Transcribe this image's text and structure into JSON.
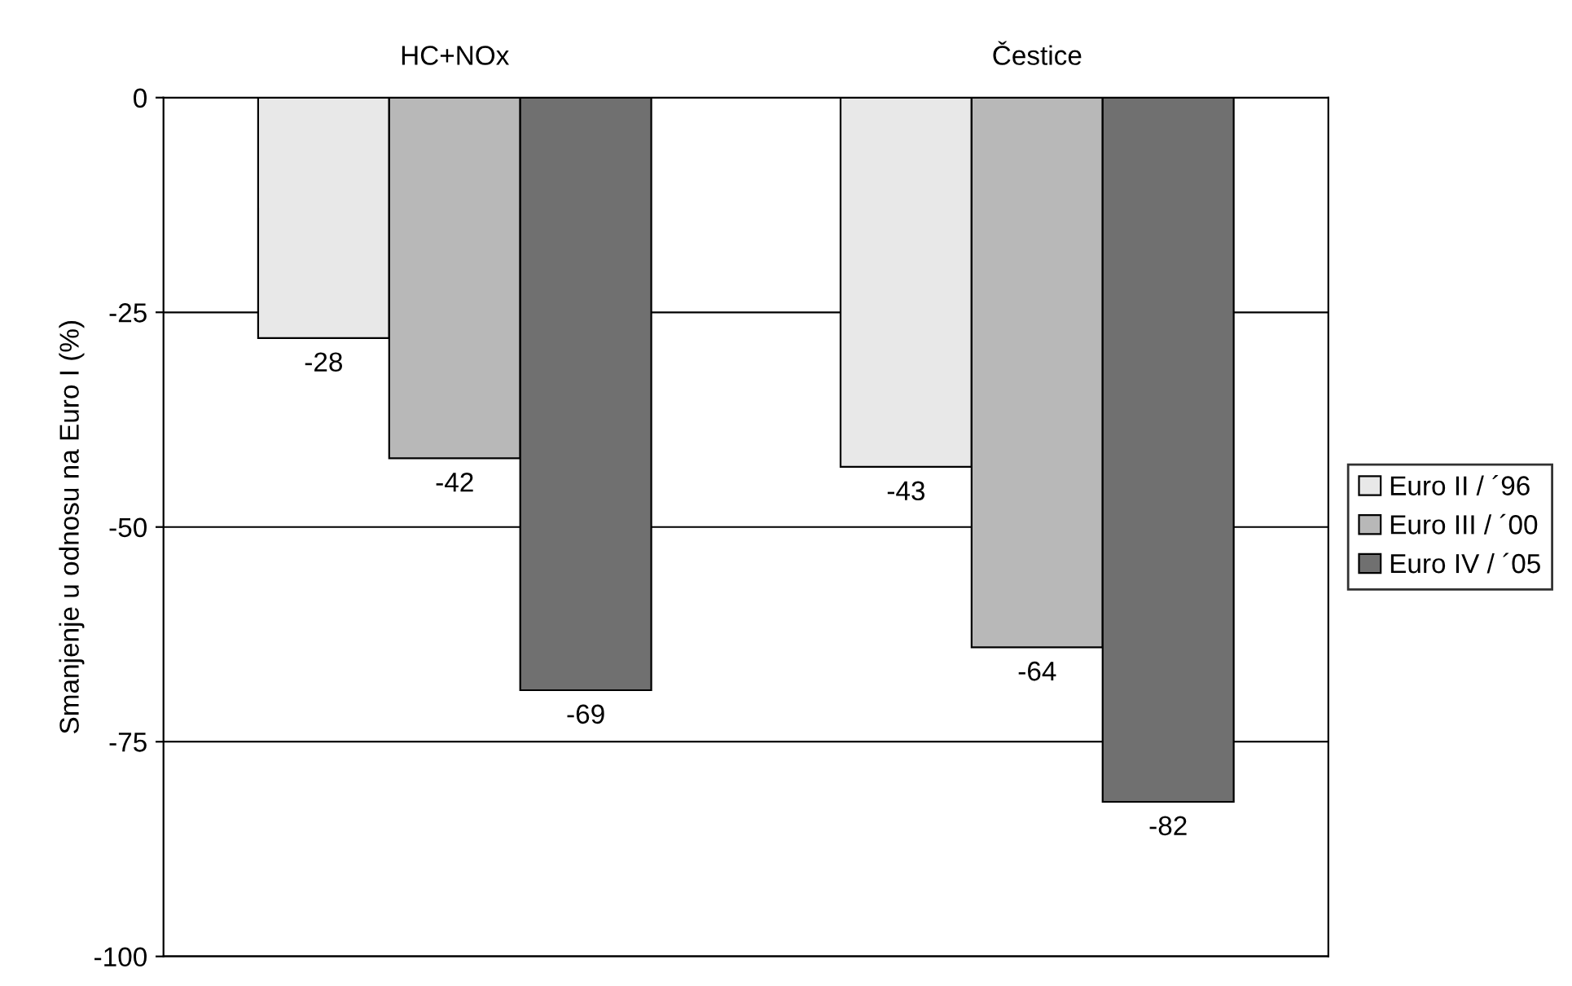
{
  "chart_data": {
    "type": "bar",
    "categories": [
      "HC+NOx",
      "Čestice"
    ],
    "ylabel": "Smanjenje u odnosu na Euro I (%)",
    "series": [
      {
        "name": "Euro II / ´96",
        "color": "#e8e8e8",
        "values": [
          -28,
          -43
        ]
      },
      {
        "name": "Euro III / ´00",
        "color": "#b8b8b8",
        "values": [
          -42,
          -64
        ]
      },
      {
        "name": "Euro IV / ´05",
        "color": "#707070",
        "values": [
          -69,
          -82
        ]
      }
    ],
    "ylim": [
      -100,
      0
    ],
    "yticks": [
      -100,
      -75,
      -50,
      -25,
      0
    ],
    "grid": "y",
    "legend": "right",
    "data_labels": true
  }
}
